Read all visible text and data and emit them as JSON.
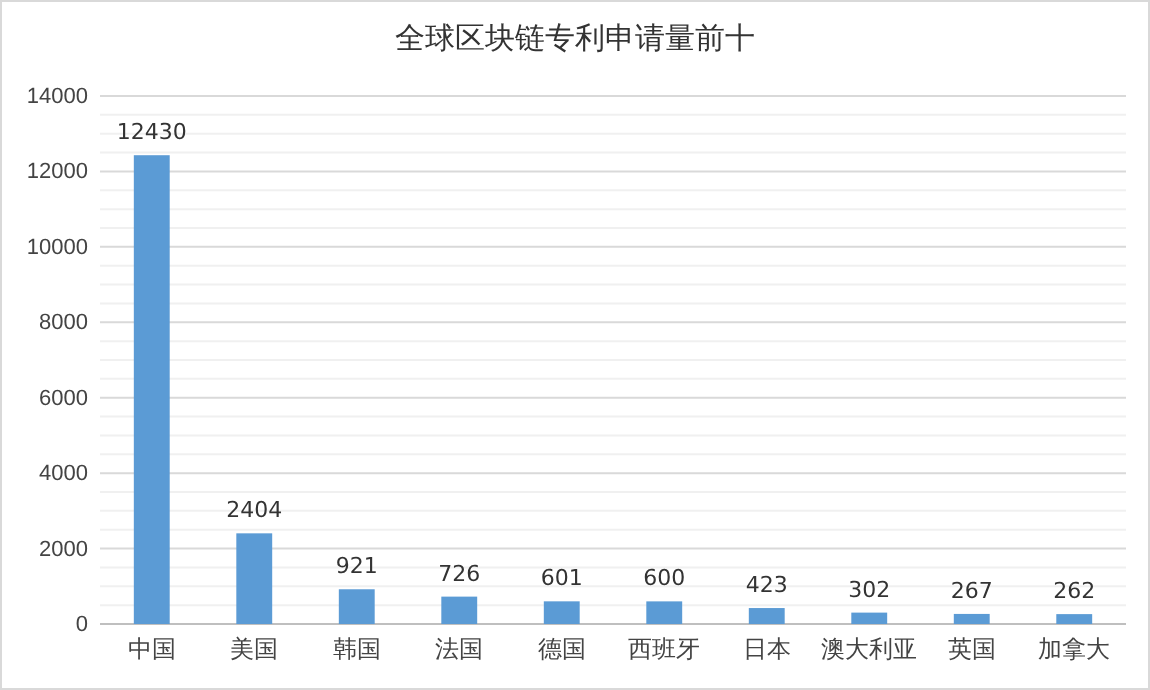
{
  "chart_data": {
    "type": "bar",
    "title": "全球区块链专利申请量前十",
    "categories": [
      "中国",
      "美国",
      "韩国",
      "法国",
      "德国",
      "西班牙",
      "日本",
      "澳大利亚",
      "英国",
      "加拿大"
    ],
    "values": [
      12430,
      2404,
      921,
      726,
      601,
      600,
      423,
      302,
      267,
      262
    ],
    "color": "#5b9bd5",
    "data_labels": true,
    "grid": "y",
    "ylim": [
      0,
      14000
    ],
    "yticks": [
      0,
      {
        "value": 500,
        "label": null
      },
      {
        "value": 1000,
        "label": null
      },
      {
        "value": 1500,
        "label": null
      },
      2000,
      {
        "value": 2500,
        "label": null
      },
      {
        "value": 3000,
        "label": null
      },
      {
        "value": 3500,
        "label": null
      },
      4000,
      {
        "value": 4500,
        "label": null
      },
      {
        "value": 5000,
        "label": null
      },
      {
        "value": 5500,
        "label": null
      },
      6000,
      {
        "value": 6500,
        "label": null
      },
      {
        "value": 7000,
        "label": null
      },
      {
        "value": 7500,
        "label": null
      },
      8000,
      {
        "value": 8500,
        "label": null
      },
      {
        "value": 9000,
        "label": null
      },
      {
        "value": 9500,
        "label": null
      },
      10000,
      {
        "value": 10500,
        "label": null
      },
      {
        "value": 11000,
        "label": null
      },
      {
        "value": 11500,
        "label": null
      },
      12000,
      {
        "value": 12500,
        "label": null
      },
      {
        "value": 13000,
        "label": null
      },
      {
        "value": 13500,
        "label": null
      },
      14000
    ]
  }
}
